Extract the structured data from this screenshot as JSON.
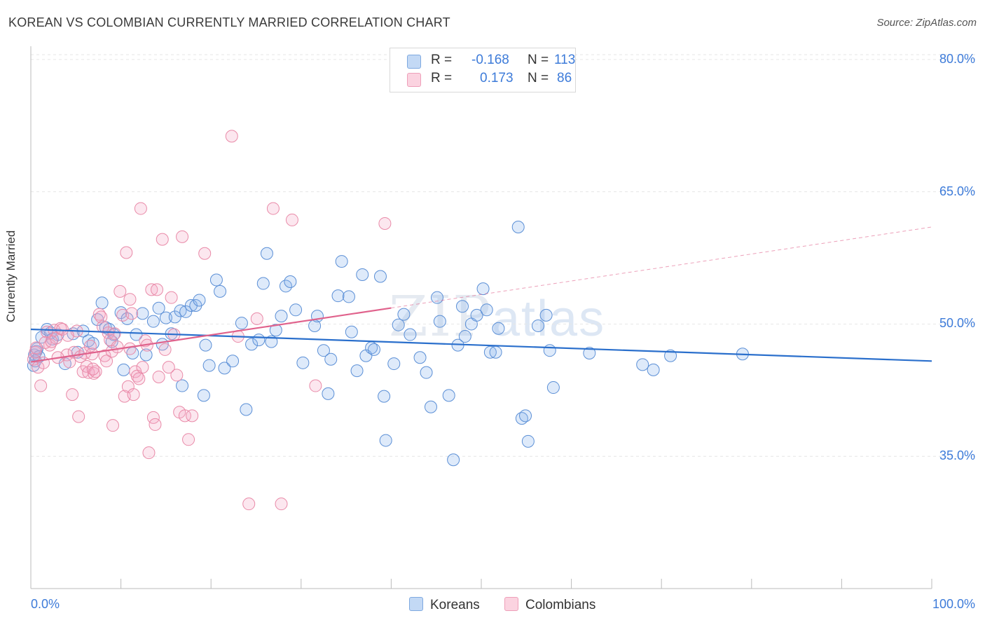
{
  "header": {
    "title": "KOREAN VS COLOMBIAN CURRENTLY MARRIED CORRELATION CHART",
    "source": "Source: ZipAtlas.com"
  },
  "legend": {
    "rows": [
      {
        "r_label": "R =",
        "r_value": "-0.168",
        "n_label": "N =",
        "n_value": "113",
        "color": "#a9c8f0"
      },
      {
        "r_label": "R =",
        "r_value": "0.173",
        "n_label": "N =",
        "n_value": "86",
        "color": "#f6b9cc"
      }
    ],
    "bottom": [
      "Koreans",
      "Colombians"
    ]
  },
  "watermark": {
    "zip": "ZIP",
    "atlas": "atlas"
  },
  "colors": {
    "korean_fill": "rgba(137,180,236,0.28)",
    "korean_stroke": "#5b8fd6",
    "korean_line": "#2a6fcc",
    "colombian_fill": "rgba(244,170,196,0.28)",
    "colombian_stroke": "#e98aa8",
    "colombian_line": "#e0628c",
    "grid": "#e6e6e6",
    "tick_text": "#3d7bd9"
  },
  "chart_data": {
    "type": "scatter",
    "title": "KOREAN VS COLOMBIAN CURRENTLY MARRIED CORRELATION CHART",
    "xlabel": "",
    "ylabel": "Currently Married",
    "xlim": [
      0,
      100
    ],
    "ylim": [
      20,
      81.5
    ],
    "x_tick_labels": [
      "0.0%",
      "100.0%"
    ],
    "y_ticks": [
      35,
      50,
      65,
      80
    ],
    "y_tick_labels": [
      "35.0%",
      "50.0%",
      "65.0%",
      "80.0%"
    ],
    "grid": true,
    "legend_position": "top-center",
    "series": [
      {
        "name": "Koreans",
        "r": -0.168,
        "n": 113,
        "trend": {
          "x": [
            0,
            100
          ],
          "y": [
            49.4,
            45.8
          ],
          "dashed_from": null
        },
        "points": [
          [
            0.3,
            45.3
          ],
          [
            0.4,
            46.5
          ],
          [
            0.5,
            45.8
          ],
          [
            0.6,
            46.9
          ],
          [
            0.7,
            47.2
          ],
          [
            0.9,
            46.3
          ],
          [
            1.2,
            48.5
          ],
          [
            1.8,
            49.4
          ],
          [
            2.2,
            49.0
          ],
          [
            2.4,
            48.3
          ],
          [
            3.0,
            48.8
          ],
          [
            3.8,
            45.5
          ],
          [
            4.7,
            48.9
          ],
          [
            5.2,
            46.8
          ],
          [
            5.8,
            49.2
          ],
          [
            6.4,
            48.1
          ],
          [
            6.9,
            47.8
          ],
          [
            7.4,
            50.5
          ],
          [
            7.9,
            52.4
          ],
          [
            8.3,
            49.6
          ],
          [
            8.7,
            49.4
          ],
          [
            9.0,
            48.0
          ],
          [
            9.2,
            48.8
          ],
          [
            10.0,
            51.3
          ],
          [
            10.3,
            44.8
          ],
          [
            10.7,
            50.6
          ],
          [
            11.3,
            46.7
          ],
          [
            11.7,
            48.8
          ],
          [
            12.4,
            51.2
          ],
          [
            12.8,
            46.5
          ],
          [
            13.6,
            50.3
          ],
          [
            14.2,
            51.8
          ],
          [
            14.6,
            47.7
          ],
          [
            15.0,
            50.7
          ],
          [
            15.6,
            48.9
          ],
          [
            16.0,
            50.8
          ],
          [
            16.6,
            51.5
          ],
          [
            16.8,
            43.0
          ],
          [
            17.2,
            51.4
          ],
          [
            17.8,
            52.1
          ],
          [
            18.3,
            52.1
          ],
          [
            18.7,
            52.7
          ],
          [
            19.2,
            41.9
          ],
          [
            19.4,
            47.6
          ],
          [
            19.8,
            45.3
          ],
          [
            20.6,
            55.0
          ],
          [
            21.0,
            53.7
          ],
          [
            21.5,
            45.0
          ],
          [
            22.4,
            45.8
          ],
          [
            23.4,
            50.1
          ],
          [
            23.9,
            40.3
          ],
          [
            24.5,
            47.7
          ],
          [
            25.3,
            48.2
          ],
          [
            25.8,
            54.6
          ],
          [
            26.2,
            58.0
          ],
          [
            26.7,
            48.0
          ],
          [
            27.2,
            49.3
          ],
          [
            27.8,
            50.9
          ],
          [
            28.3,
            54.3
          ],
          [
            28.8,
            54.8
          ],
          [
            29.4,
            51.6
          ],
          [
            30.2,
            45.6
          ],
          [
            31.5,
            49.8
          ],
          [
            31.8,
            50.9
          ],
          [
            32.5,
            47.0
          ],
          [
            33.0,
            42.1
          ],
          [
            33.3,
            46.0
          ],
          [
            34.1,
            53.2
          ],
          [
            34.5,
            57.1
          ],
          [
            35.3,
            53.1
          ],
          [
            35.6,
            49.1
          ],
          [
            36.2,
            44.7
          ],
          [
            36.8,
            55.6
          ],
          [
            37.2,
            46.4
          ],
          [
            37.8,
            47.3
          ],
          [
            38.1,
            47.1
          ],
          [
            38.8,
            55.4
          ],
          [
            39.2,
            41.8
          ],
          [
            39.4,
            36.8
          ],
          [
            40.3,
            45.5
          ],
          [
            40.8,
            49.9
          ],
          [
            41.4,
            51.1
          ],
          [
            42.1,
            48.8
          ],
          [
            43.2,
            46.2
          ],
          [
            43.9,
            44.5
          ],
          [
            44.4,
            40.6
          ],
          [
            45.1,
            53.0
          ],
          [
            45.4,
            50.3
          ],
          [
            46.4,
            41.9
          ],
          [
            46.9,
            34.6
          ],
          [
            47.4,
            47.6
          ],
          [
            47.9,
            52.0
          ],
          [
            48.2,
            48.6
          ],
          [
            48.9,
            50.0
          ],
          [
            49.5,
            51.0
          ],
          [
            50.2,
            54.0
          ],
          [
            50.6,
            51.6
          ],
          [
            51.0,
            46.8
          ],
          [
            51.6,
            46.8
          ],
          [
            51.9,
            49.5
          ],
          [
            54.1,
            61.0
          ],
          [
            54.5,
            39.3
          ],
          [
            54.9,
            39.6
          ],
          [
            55.2,
            36.7
          ],
          [
            56.3,
            49.8
          ],
          [
            57.2,
            51.0
          ],
          [
            57.6,
            47.0
          ],
          [
            58.0,
            42.8
          ],
          [
            62.0,
            46.7
          ],
          [
            67.9,
            45.4
          ],
          [
            69.1,
            44.8
          ],
          [
            71.0,
            46.4
          ],
          [
            79.0,
            46.6
          ]
        ]
      },
      {
        "name": "Colombians",
        "r": 0.173,
        "n": 86,
        "trend": {
          "x": [
            0,
            100
          ],
          "y": [
            45.7,
            61.0
          ],
          "dashed_from": 40
        },
        "points": [
          [
            0.3,
            46.0
          ],
          [
            0.5,
            46.8
          ],
          [
            0.6,
            47.3
          ],
          [
            0.8,
            45.1
          ],
          [
            1.1,
            43.0
          ],
          [
            1.4,
            45.6
          ],
          [
            1.8,
            49.1
          ],
          [
            2.1,
            47.6
          ],
          [
            2.6,
            49.3
          ],
          [
            2.8,
            48.4
          ],
          [
            3.3,
            49.5
          ],
          [
            3.5,
            49.4
          ],
          [
            4.0,
            46.5
          ],
          [
            4.3,
            45.7
          ],
          [
            4.6,
            42.0
          ],
          [
            4.8,
            46.8
          ],
          [
            5.1,
            49.2
          ],
          [
            5.3,
            39.5
          ],
          [
            5.5,
            46.3
          ],
          [
            5.8,
            44.6
          ],
          [
            6.0,
            46.7
          ],
          [
            6.2,
            45.2
          ],
          [
            6.4,
            44.5
          ],
          [
            6.6,
            47.5
          ],
          [
            6.8,
            46.6
          ],
          [
            7.0,
            44.4
          ],
          [
            7.2,
            44.6
          ],
          [
            7.6,
            51.1
          ],
          [
            7.8,
            50.8
          ],
          [
            8.2,
            46.4
          ],
          [
            8.4,
            45.8
          ],
          [
            8.6,
            49.0
          ],
          [
            8.8,
            48.2
          ],
          [
            9.0,
            46.9
          ],
          [
            9.1,
            38.5
          ],
          [
            9.3,
            48.9
          ],
          [
            9.6,
            47.4
          ],
          [
            9.9,
            53.7
          ],
          [
            10.2,
            51.0
          ],
          [
            10.4,
            41.8
          ],
          [
            10.6,
            58.1
          ],
          [
            10.8,
            42.9
          ],
          [
            11.0,
            52.8
          ],
          [
            11.2,
            51.2
          ],
          [
            11.4,
            42.0
          ],
          [
            11.6,
            44.6
          ],
          [
            11.8,
            44.1
          ],
          [
            12.0,
            43.8
          ],
          [
            12.2,
            63.1
          ],
          [
            12.4,
            45.1
          ],
          [
            12.7,
            48.1
          ],
          [
            12.9,
            47.6
          ],
          [
            13.1,
            35.4
          ],
          [
            13.4,
            53.9
          ],
          [
            13.6,
            39.4
          ],
          [
            13.8,
            38.6
          ],
          [
            14.0,
            53.9
          ],
          [
            14.2,
            44.0
          ],
          [
            14.6,
            59.6
          ],
          [
            14.9,
            47.1
          ],
          [
            15.3,
            45.1
          ],
          [
            15.6,
            53.0
          ],
          [
            15.9,
            48.8
          ],
          [
            16.2,
            44.2
          ],
          [
            16.5,
            40.0
          ],
          [
            16.8,
            59.9
          ],
          [
            17.1,
            39.6
          ],
          [
            17.5,
            36.9
          ],
          [
            17.9,
            39.6
          ],
          [
            19.3,
            58.0
          ],
          [
            22.3,
            71.3
          ],
          [
            23.0,
            48.6
          ],
          [
            24.2,
            29.6
          ],
          [
            25.1,
            50.6
          ],
          [
            26.9,
            63.1
          ],
          [
            27.8,
            29.6
          ],
          [
            29.0,
            61.8
          ],
          [
            31.6,
            43.0
          ],
          [
            39.3,
            61.4
          ],
          [
            1.6,
            47.9
          ],
          [
            3.0,
            46.2
          ],
          [
            2.3,
            48.0
          ],
          [
            6.9,
            44.9
          ],
          [
            8.0,
            49.7
          ],
          [
            11.0,
            47.2
          ],
          [
            4.1,
            48.7
          ]
        ]
      }
    ]
  }
}
